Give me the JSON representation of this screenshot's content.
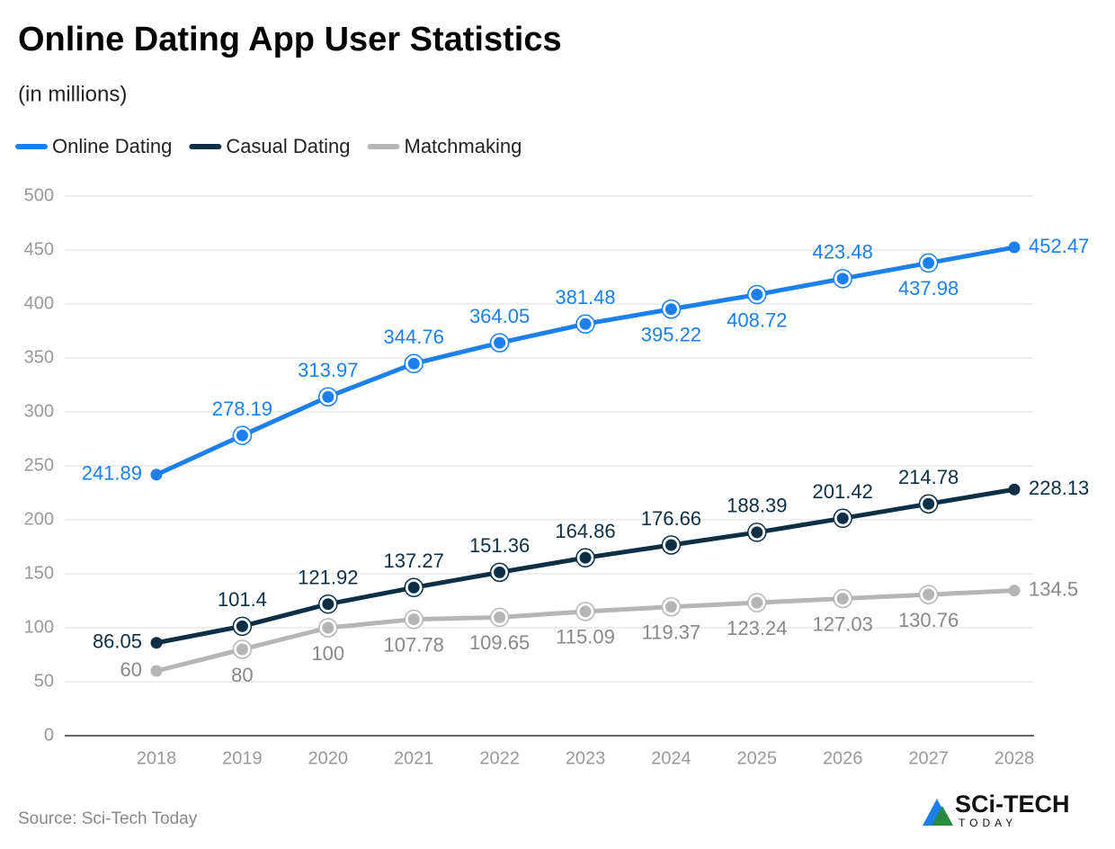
{
  "chart_data": {
    "type": "line",
    "title": "Online Dating App User Statistics",
    "subtitle": "(in millions)",
    "categories": [
      "2018",
      "2019",
      "2020",
      "2021",
      "2022",
      "2023",
      "2024",
      "2025",
      "2026",
      "2027",
      "2028"
    ],
    "series": [
      {
        "name": "Online Dating",
        "color": "#1b7fec",
        "values": [
          241.89,
          278.19,
          313.97,
          344.76,
          364.05,
          381.48,
          395.22,
          408.72,
          423.48,
          437.98,
          452.47
        ]
      },
      {
        "name": "Casual Dating",
        "color": "#0c2f45",
        "values": [
          86.05,
          101.4,
          121.92,
          137.27,
          151.36,
          164.86,
          176.66,
          188.39,
          201.42,
          214.78,
          228.13
        ]
      },
      {
        "name": "Matchmaking",
        "color": "#b5b5b5",
        "values": [
          60,
          80,
          100,
          107.78,
          109.65,
          115.09,
          119.37,
          123.24,
          127.03,
          130.76,
          134.5
        ]
      }
    ],
    "ylim": [
      0,
      500
    ],
    "yticks": [
      0,
      50,
      100,
      150,
      200,
      250,
      300,
      350,
      400,
      450,
      500
    ],
    "grid": true,
    "source": "Source: Sci-Tech Today",
    "logo_text": "SCi-TECH",
    "logo_subtext": "TODAY"
  }
}
